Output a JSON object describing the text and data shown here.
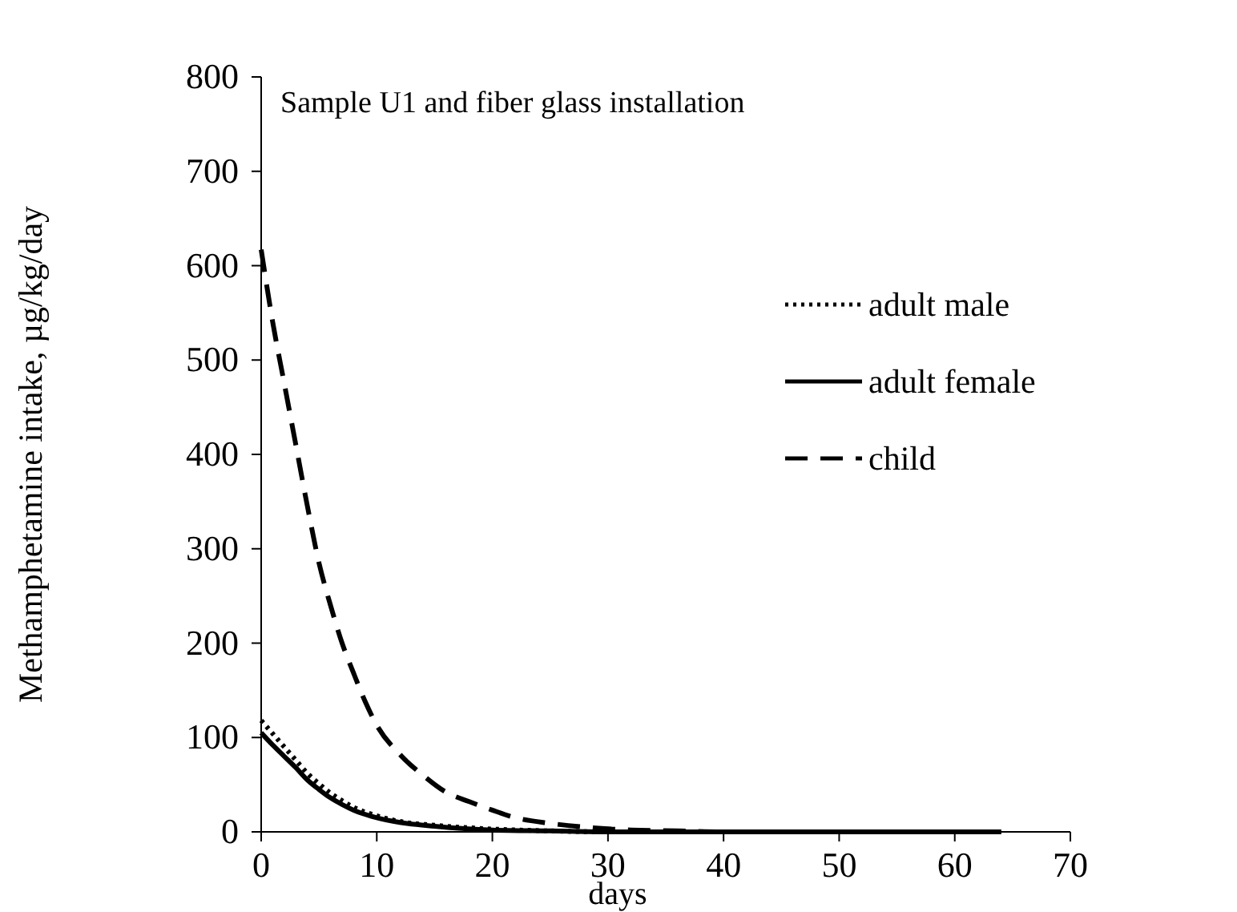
{
  "chart_data": {
    "type": "line",
    "title": "Sample U1 and fiber glass installation",
    "xlabel": "days",
    "ylabel": "Methamphetamine intake, µg/kg/day",
    "xlim": [
      0,
      70
    ],
    "xticks": [
      0,
      10,
      20,
      30,
      40,
      50,
      60,
      70
    ],
    "ylim": [
      0,
      800
    ],
    "yticks": [
      0,
      100,
      200,
      300,
      400,
      500,
      600,
      700,
      800
    ],
    "grid": false,
    "legend": "right",
    "series": [
      {
        "name": "adult male",
        "color": "#000000",
        "line_style": "dotted",
        "x": [
          0,
          1,
          2,
          3,
          4,
          5,
          6,
          7,
          8,
          10,
          12,
          15,
          20,
          25,
          30,
          40,
          64
        ],
        "values": [
          118,
          104,
          90,
          76,
          62,
          51,
          41,
          33,
          26,
          17,
          11,
          7,
          3,
          1,
          0,
          0,
          0
        ]
      },
      {
        "name": "adult female",
        "color": "#000000",
        "line_style": "solid",
        "x": [
          0,
          1,
          2,
          3,
          4,
          5,
          6,
          7,
          8,
          10,
          12,
          15,
          20,
          25,
          30,
          40,
          64
        ],
        "values": [
          105,
          92,
          80,
          68,
          55,
          45,
          36,
          29,
          23,
          15,
          10,
          6,
          2,
          1,
          0,
          0,
          0
        ]
      },
      {
        "name": "child",
        "color": "#000000",
        "line_style": "dashed",
        "x": [
          0,
          1,
          2,
          3,
          4,
          5,
          6,
          7,
          8,
          9,
          10,
          12,
          14,
          16,
          18,
          20,
          22,
          25,
          28,
          32,
          36,
          40,
          50,
          64
        ],
        "values": [
          617,
          540,
          475,
          410,
          345,
          285,
          240,
          200,
          168,
          138,
          113,
          82,
          60,
          42,
          32,
          23,
          15,
          9,
          5,
          2,
          1,
          0,
          0,
          0
        ]
      }
    ]
  }
}
